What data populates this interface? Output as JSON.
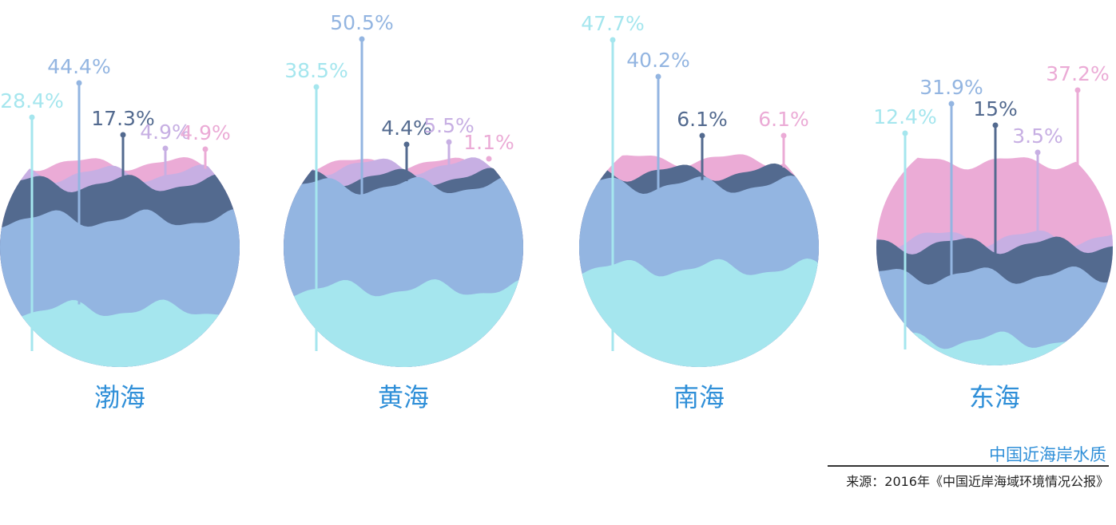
{
  "chart_data": {
    "type": "stacked-circle",
    "title": "中国近海岸水质",
    "source": "来源：2016年《中国近岸海域环境情况公报》",
    "layer_colors": [
      "#a5e6ee",
      "#93b5e1",
      "#536a8f",
      "#c7afe3",
      "#ebabd6"
    ],
    "seas": [
      {
        "name": "渤海",
        "values": [
          28.4,
          44.4,
          17.3,
          4.9,
          4.9
        ],
        "labels": [
          "28.4%",
          "44.4%",
          "17.3%",
          "4.9%",
          "4.9%"
        ]
      },
      {
        "name": "黄海",
        "values": [
          38.5,
          50.5,
          4.4,
          5.5,
          1.1
        ],
        "labels": [
          "38.5%",
          "50.5%",
          "4.4%",
          "5.5%",
          "1.1%"
        ]
      },
      {
        "name": "南海",
        "values": [
          47.7,
          40.2,
          6.1,
          0,
          6.1
        ],
        "labels": [
          "47.7%",
          "40.2%",
          "6.1%",
          "",
          "6.1%"
        ]
      },
      {
        "name": "东海",
        "values": [
          12.4,
          31.9,
          15,
          3.5,
          37.2
        ],
        "labels": [
          "12.4%",
          "31.9%",
          "15%",
          "3.5%",
          "37.2%"
        ]
      }
    ]
  }
}
